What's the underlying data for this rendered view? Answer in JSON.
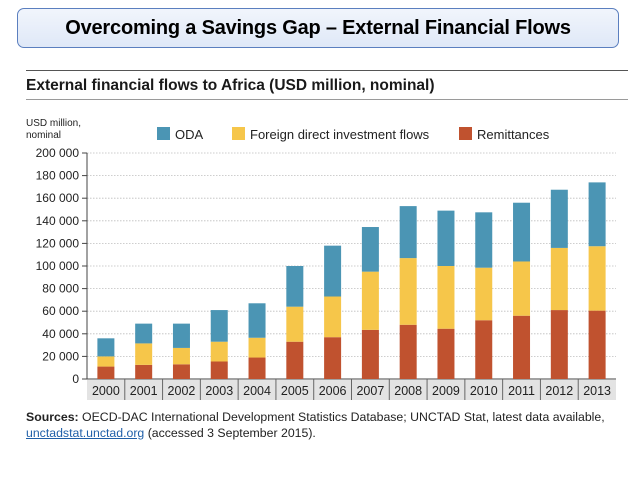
{
  "slide": {
    "title": "Overcoming a Savings Gap – External Financial Flows"
  },
  "chart_data": {
    "type": "bar",
    "stacked": true,
    "title": "External financial flows to Africa (USD million, nominal)",
    "ylabel_line1": "USD million,",
    "ylabel_line2": "nominal",
    "ylim": [
      0,
      200000
    ],
    "yticks": [
      "0",
      "20 000",
      "40 000",
      "60 000",
      "80 000",
      "100 000",
      "120 000",
      "140 000",
      "160 000",
      "180 000",
      "200 000"
    ],
    "categories": [
      "2000",
      "2001",
      "2002",
      "2003",
      "2004",
      "2005",
      "2006",
      "2007",
      "2008",
      "2009",
      "2010",
      "2011",
      "2012",
      "2013"
    ],
    "series": [
      {
        "name": "Remittances",
        "color": "#c0522f",
        "values": [
          11000,
          12500,
          13000,
          15500,
          19000,
          33000,
          37000,
          43500,
          48000,
          44500,
          52000,
          56000,
          61000,
          60500
        ]
      },
      {
        "name": "Foreign direct investment flows",
        "color": "#f6c64a",
        "values": [
          9000,
          19000,
          14500,
          17500,
          17500,
          31000,
          36000,
          51500,
          59000,
          55500,
          46500,
          48000,
          55000,
          57000
        ]
      },
      {
        "name": "ODA",
        "color": "#4b95b4",
        "values": [
          16000,
          17500,
          21500,
          28000,
          30500,
          36000,
          45000,
          39500,
          46000,
          49000,
          49000,
          52000,
          51500,
          56500
        ]
      }
    ],
    "legend": [
      "ODA",
      "Foreign direct investment flows",
      "Remittances"
    ],
    "legend_position": "top"
  },
  "sources": {
    "label": "Sources:",
    "text": " OECD-DAC International Development Statistics Database; UNCTAD Stat, latest data available, ",
    "link": "unctadstat.unctad.org",
    "suffix": " (accessed 3 September 2015)."
  },
  "colors": {
    "border": "#5b7fbf",
    "link": "#1f5fa8"
  }
}
